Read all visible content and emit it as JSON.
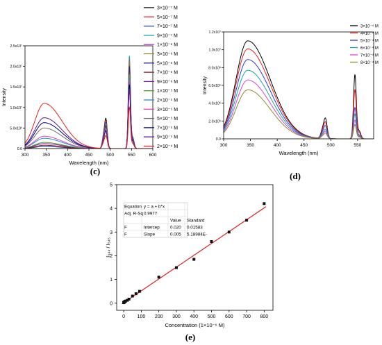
{
  "panels": {
    "c": {
      "label": "(c)"
    },
    "d": {
      "label": "(d)"
    },
    "e": {
      "label": "(e)"
    }
  },
  "colors": {
    "fit_line": "#e02020",
    "points": "#111111"
  },
  "chart_data": [
    {
      "id": "c",
      "type": "line",
      "xlabel": "Wavelength (nm)",
      "ylabel": "Intensity",
      "xlim": [
        300,
        600
      ],
      "ylim": [
        0,
        25000000
      ],
      "xticks": [
        300,
        350,
        400,
        450,
        500,
        550,
        600
      ],
      "yticks": [
        {
          "value": 0,
          "label": "0.0"
        },
        {
          "value": 5000000,
          "label": "5.0x10⁶"
        },
        {
          "value": 10000000,
          "label": "1.0x10⁷"
        },
        {
          "value": 15000000,
          "label": "1.5x10⁷"
        },
        {
          "value": 20000000,
          "label": "2.0x10⁷"
        },
        {
          "value": 25000000,
          "label": "2.5x10⁷"
        }
      ],
      "legend_placement": "right",
      "series": [
        {
          "name": "3×10⁻⁷ M",
          "color": "#000000",
          "broad": 0,
          "p490": 7000000,
          "p545": 15500000
        },
        {
          "name": "5×10⁻⁷ M",
          "color": "#e8201c",
          "broad": 0,
          "p490": 6500000,
          "p545": 14000000
        },
        {
          "name": "7×10⁻⁷ M",
          "color": "#2a3bd6",
          "broad": 0,
          "p490": 6000000,
          "p545": 20500000
        },
        {
          "name": "9×10⁻⁷ M",
          "color": "#17a6a6",
          "broad": 0,
          "p490": 5800000,
          "p545": 22500000
        },
        {
          "name": "1×10⁻⁶ M",
          "color": "#c02fbf",
          "broad": 0,
          "p490": 5500000,
          "p545": 21500000
        },
        {
          "name": "3×10⁻⁶ M",
          "color": "#8a8a2a",
          "broad": 0,
          "p490": 5500000,
          "p545": 21000000
        },
        {
          "name": "5×10⁻⁶ M",
          "color": "#1f2a8c",
          "broad": 500000,
          "p490": 5300000,
          "p545": 20000000
        },
        {
          "name": "7×10⁻⁶ M",
          "color": "#8b1a1a",
          "broad": 800000,
          "p490": 5100000,
          "p545": 19000000
        },
        {
          "name": "9×10⁻⁶ M",
          "color": "#7a1fa2",
          "broad": 1200000,
          "p490": 5000000,
          "p545": 18500000
        },
        {
          "name": "1×10⁻⁵ M",
          "color": "#4f9d2a",
          "broad": 1500000,
          "p490": 4800000,
          "p545": 18000000
        },
        {
          "name": "2×10⁻⁵ M",
          "color": "#1c8fd6",
          "broad": 2500000,
          "p490": 4600000,
          "p545": 17000000
        },
        {
          "name": "3×10⁻⁵ M",
          "color": "#e03fb0",
          "broad": 3000000,
          "p490": 4500000,
          "p545": 16500000
        },
        {
          "name": "5×10⁻⁵ M",
          "color": "#6b6b6b",
          "broad": 5000000,
          "p490": 4300000,
          "p545": 16000000
        },
        {
          "name": "7×10⁻⁵ M",
          "color": "#000080",
          "broad": 6300000,
          "p490": 4100000,
          "p545": 15500000
        },
        {
          "name": "9×10⁻⁵ M",
          "color": "#5a1a8c",
          "broad": 7500000,
          "p490": 4000000,
          "p545": 14500000
        },
        {
          "name": "2×10⁻⁴ M",
          "color": "#e8201c",
          "broad": 11000000,
          "p490": 3000000,
          "p545": 10000000
        }
      ]
    },
    {
      "id": "d",
      "type": "line",
      "xlabel": "Wavelength (nm)",
      "ylabel": "Intensity",
      "xlim": [
        300,
        580
      ],
      "ylim": [
        0,
        12000000
      ],
      "xticks": [
        300,
        350,
        400,
        450,
        500,
        550
      ],
      "yticks": [
        {
          "value": 0,
          "label": "0.0"
        },
        {
          "value": 2000000,
          "label": "2.0x10⁶"
        },
        {
          "value": 4000000,
          "label": "4.0x10⁶"
        },
        {
          "value": 6000000,
          "label": "6.0x10⁶"
        },
        {
          "value": 8000000,
          "label": "8.0x10⁶"
        },
        {
          "value": 10000000,
          "label": "1.0x10⁷"
        },
        {
          "value": 12000000,
          "label": "1.2x10⁷"
        }
      ],
      "legend_placement": "top-right",
      "series": [
        {
          "name": "3×10⁻⁴ M",
          "color": "#000000",
          "broad": 11000000,
          "p490": 2200000,
          "p545": 7200000
        },
        {
          "name": "4×10⁻⁴ M",
          "color": "#e8201c",
          "broad": 10100000,
          "p490": 1800000,
          "p545": 5500000
        },
        {
          "name": "5×10⁻⁴ M",
          "color": "#2a3bd6",
          "broad": 8900000,
          "p490": 1400000,
          "p545": 3500000
        },
        {
          "name": "6×10⁻⁴ M",
          "color": "#17a6a6",
          "broad": 7700000,
          "p490": 1000000,
          "p545": 2800000
        },
        {
          "name": "7×10⁻⁴ M",
          "color": "#e03fe0",
          "broad": 6600000,
          "p490": 800000,
          "p545": 2100000
        },
        {
          "name": "8×10⁻⁴ M",
          "color": "#8a8a2a",
          "broad": 5500000,
          "p490": 600000,
          "p545": 1600000
        }
      ]
    },
    {
      "id": "e",
      "type": "scatter",
      "xlabel": "Concentration (1×10⁻⁶ M)",
      "ylabel": "I₃₄₄ / I₅₄₅",
      "xlim": [
        -40,
        850
      ],
      "ylim": [
        -0.3,
        5
      ],
      "xticks": [
        0,
        100,
        200,
        300,
        400,
        500,
        600,
        700,
        800
      ],
      "yticks": [
        0,
        1,
        2,
        3,
        4,
        5
      ],
      "points": [
        {
          "x": 0.3,
          "y": 0.02
        },
        {
          "x": 0.5,
          "y": 0.025
        },
        {
          "x": 0.7,
          "y": 0.03
        },
        {
          "x": 0.9,
          "y": 0.035
        },
        {
          "x": 1,
          "y": 0.04
        },
        {
          "x": 3,
          "y": 0.05
        },
        {
          "x": 5,
          "y": 0.06
        },
        {
          "x": 7,
          "y": 0.07
        },
        {
          "x": 9,
          "y": 0.08
        },
        {
          "x": 10,
          "y": 0.09
        },
        {
          "x": 20,
          "y": 0.12
        },
        {
          "x": 30,
          "y": 0.17
        },
        {
          "x": 50,
          "y": 0.3
        },
        {
          "x": 70,
          "y": 0.4
        },
        {
          "x": 90,
          "y": 0.5
        },
        {
          "x": 200,
          "y": 1.1
        },
        {
          "x": 300,
          "y": 1.5
        },
        {
          "x": 400,
          "y": 1.85
        },
        {
          "x": 500,
          "y": 2.6
        },
        {
          "x": 600,
          "y": 3.0
        },
        {
          "x": 700,
          "y": 3.5
        },
        {
          "x": 800,
          "y": 4.2
        }
      ],
      "fit": {
        "intercept": 0.02,
        "slope": 0.005
      },
      "fit_table": {
        "rows": [
          [
            "Equation",
            "y = a + b*x",
            "",
            ""
          ],
          [
            "Adj. R-Sq",
            "0.9977",
            "",
            ""
          ],
          [
            "",
            "",
            "Value",
            "Standard"
          ],
          [
            "F",
            "Intercep",
            "0.020",
            "0.01583"
          ],
          [
            "F",
            "Slope",
            "0.005",
            "5.18984E-"
          ]
        ]
      }
    }
  ]
}
